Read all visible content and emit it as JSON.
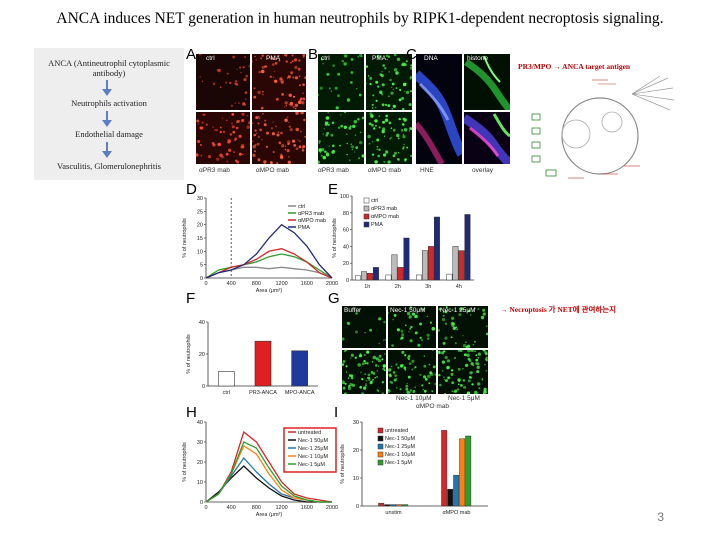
{
  "title": "ANCA induces NET generation in human neutrophils by RIPK1-dependent necroptosis signaling.",
  "flow": [
    "ANCA (Antineutrophil cytoplasmic antibody)",
    "Neutrophils activation",
    "Endothelial damage",
    "Vasculitis, Glomerulonephritis"
  ],
  "panels": {
    "A": {
      "letter": "A",
      "ctrl": "ctrl",
      "pma": "PMA",
      "ab1": "αPR3 mab",
      "ab2": "αMPO mab"
    },
    "B": {
      "letter": "B",
      "ctrl": "ctrl",
      "pma": "PMA"
    },
    "C": {
      "letter": "C",
      "dna": "DNA",
      "histone": "histone",
      "hne": "HNE",
      "overlay": "overlay"
    },
    "D": {
      "letter": "D"
    },
    "E": {
      "letter": "E"
    },
    "F": {
      "letter": "F"
    },
    "G": {
      "letter": "G",
      "buffer": "Buffer",
      "nec1_50": "Nec-1 50μM",
      "nec1_25": "Nec-1 25μM",
      "nec1_10": "Nec-1 10μM",
      "nec1_5": "Nec-1 5μM",
      "group": "αMPO mab"
    },
    "H": {
      "letter": "H"
    },
    "I": {
      "letter": "I"
    }
  },
  "pathway_note": "PR3/MPO → ANCA target antigen",
  "necroptosis_note": "→ Necroptosis 가 NET에 관여하는지",
  "page_number": "3",
  "chart_data": [
    {
      "type": "line",
      "id": "D",
      "x": [
        0,
        200,
        400,
        600,
        800,
        1000,
        1200,
        1400,
        1600,
        1800,
        2000
      ],
      "series": [
        {
          "name": "ctrl",
          "color": "#888888",
          "values": [
            0,
            2,
            3,
            4,
            4,
            3.5,
            4,
            3.5,
            3,
            2,
            0
          ]
        },
        {
          "name": "αPR3 mab",
          "color": "#2ca02c",
          "values": [
            0,
            3,
            4,
            5,
            6,
            8,
            9,
            8,
            6,
            3,
            0
          ]
        },
        {
          "name": "αMPO mab",
          "color": "#d62728",
          "values": [
            0,
            2,
            4,
            5,
            7,
            10,
            11,
            9,
            6,
            2,
            0
          ]
        },
        {
          "name": "PMA",
          "color": "#1f2a7a",
          "values": [
            0,
            2,
            3,
            5,
            9,
            15,
            20,
            17,
            12,
            5,
            0
          ]
        }
      ],
      "xlabel": "Area (μm²)",
      "ylabel": "% of neutrophils",
      "xlim": [
        0,
        2000
      ],
      "ylim": [
        0,
        30
      ],
      "xticks": [
        "0",
        "400",
        "800",
        "1200",
        "1600",
        "2000"
      ],
      "yticks": [
        "0",
        "5",
        "10",
        "15",
        "20",
        "25",
        "30"
      ]
    },
    {
      "type": "bar",
      "id": "E",
      "categories": [
        "1h",
        "2h",
        "3h",
        "4h"
      ],
      "series": [
        {
          "name": "ctrl",
          "color": "#ffffff",
          "values": [
            5,
            6,
            6,
            7
          ]
        },
        {
          "name": "αPR3 mab",
          "color": "#bbbbbb",
          "values": [
            10,
            30,
            35,
            40
          ]
        },
        {
          "name": "αMPO mab",
          "color": "#d62728",
          "values": [
            8,
            15,
            40,
            35
          ]
        },
        {
          "name": "PMA",
          "color": "#1f2a7a",
          "values": [
            15,
            50,
            75,
            78
          ]
        }
      ],
      "ylabel": "% of neutrophils",
      "ylim": [
        0,
        100
      ],
      "yticks": [
        "0",
        "20",
        "40",
        "60",
        "80",
        "100"
      ]
    },
    {
      "type": "bar",
      "id": "F",
      "categories": [
        "ctrl",
        "PR3-ANCA",
        "MPO-ANCA"
      ],
      "values": [
        9,
        28,
        22
      ],
      "colors": [
        "#ffffff",
        "#e02020",
        "#1f3a9a"
      ],
      "ylabel": "% of neutrophils",
      "ylim": [
        0,
        40
      ],
      "yticks": [
        "0",
        "20",
        "40"
      ]
    },
    {
      "type": "line",
      "id": "H",
      "x": [
        0,
        200,
        400,
        600,
        800,
        1000,
        1200,
        1400,
        1600,
        1800,
        2000
      ],
      "series": [
        {
          "name": "untreated",
          "color": "#d62728",
          "values": [
            0,
            4,
            15,
            35,
            30,
            20,
            10,
            4,
            2,
            1,
            0
          ]
        },
        {
          "name": "Nec-1 50μM",
          "color": "#111111",
          "values": [
            0,
            5,
            12,
            18,
            12,
            7,
            3,
            1,
            0,
            0,
            0
          ]
        },
        {
          "name": "Nec-1 25μM",
          "color": "#1f77b4",
          "values": [
            0,
            4,
            13,
            22,
            15,
            9,
            4,
            2,
            1,
            0,
            0
          ]
        },
        {
          "name": "Nec-1 10μM",
          "color": "#ff7f0e",
          "values": [
            0,
            4,
            14,
            28,
            24,
            14,
            6,
            2,
            1,
            0,
            0
          ]
        },
        {
          "name": "Nec-1 5μM",
          "color": "#2ca02c",
          "values": [
            0,
            4,
            14,
            30,
            27,
            17,
            8,
            3,
            1,
            0,
            0
          ]
        }
      ],
      "xlabel": "Area (μm²)",
      "ylabel": "% of neutrophils",
      "xlim": [
        0,
        2000
      ],
      "ylim": [
        0,
        40
      ],
      "xticks": [
        "0",
        "400",
        "800",
        "1200",
        "1600",
        "2000"
      ],
      "yticks": [
        "0",
        "10",
        "20",
        "30",
        "40"
      ]
    },
    {
      "type": "bar",
      "id": "I",
      "categories": [
        "unstim",
        "αMPO mab"
      ],
      "series": [
        {
          "name": "untreated",
          "color": "#d62728",
          "values": [
            1,
            27
          ]
        },
        {
          "name": "Nec-1 50μM",
          "color": "#111111",
          "values": [
            0.5,
            6
          ]
        },
        {
          "name": "Nec-1 25μM",
          "color": "#1f77b4",
          "values": [
            0.5,
            11
          ]
        },
        {
          "name": "Nec-1 10μM",
          "color": "#ff7f0e",
          "values": [
            0.5,
            24
          ]
        },
        {
          "name": "Nec-1 5μM",
          "color": "#2ca02c",
          "values": [
            0.5,
            25
          ]
        }
      ],
      "ylabel": "% of neutrophils",
      "ylim": [
        0,
        30
      ],
      "yticks": [
        "0",
        "10",
        "20",
        "30"
      ]
    }
  ]
}
